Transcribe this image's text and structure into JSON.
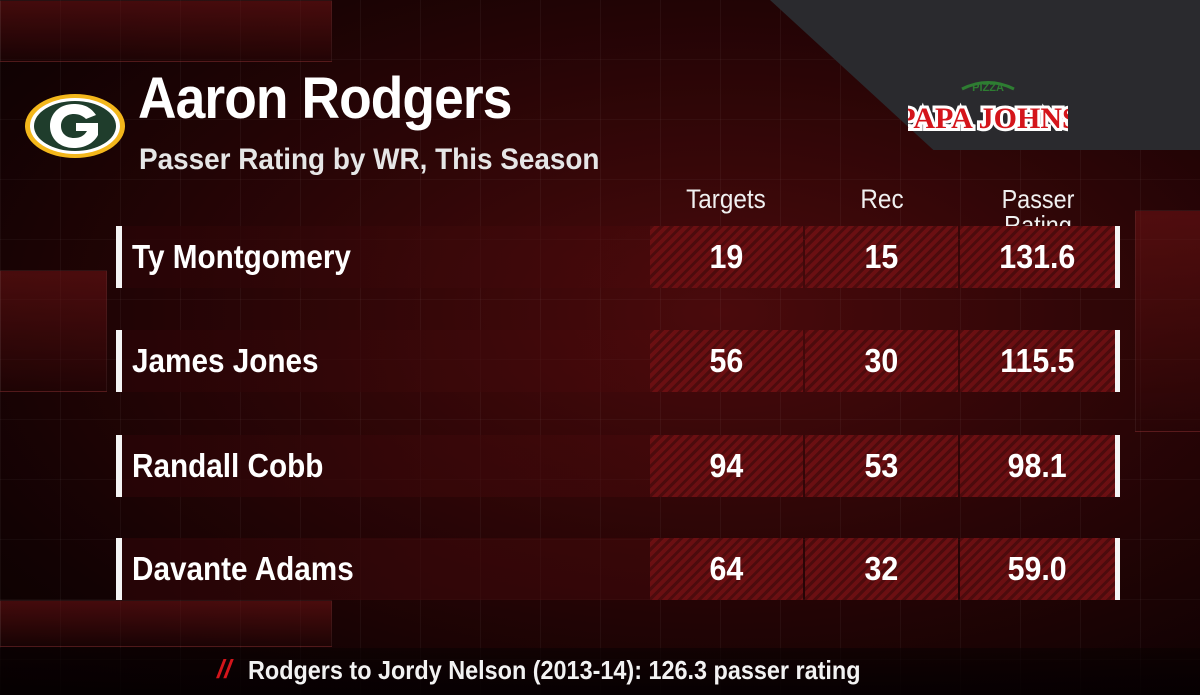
{
  "header": {
    "title": "Aaron Rodgers",
    "subtitle": "Passer Rating by WR, This Season"
  },
  "team_logo": {
    "icon": "packers-g-logo-icon",
    "colors": {
      "green": "#1f3d2c",
      "gold": "#f3b71b"
    }
  },
  "sponsor": {
    "icon": "papa-johns-logo-icon",
    "top_text": "PIZZA",
    "name": "PAPA JOHNS",
    "color": "#d4151b"
  },
  "columns": [
    "Targets",
    "Rec",
    "Passer Rating"
  ],
  "rows": [
    {
      "player": "Ty Montgomery",
      "targets": "19",
      "rec": "15",
      "rating": "131.6"
    },
    {
      "player": "James Jones",
      "targets": "56",
      "rec": "30",
      "rating": "115.5"
    },
    {
      "player": "Randall Cobb",
      "targets": "94",
      "rec": "53",
      "rating": "98.1"
    },
    {
      "player": "Davante Adams",
      "targets": "64",
      "rec": "32",
      "rating": "59.0"
    }
  ],
  "footer": {
    "marker": "//",
    "note": "Rodgers to Jordy Nelson (2013-14):  126.3 passer rating"
  },
  "theme": {
    "accent": "#d4151b",
    "cell_bg": "#6b0f12"
  }
}
